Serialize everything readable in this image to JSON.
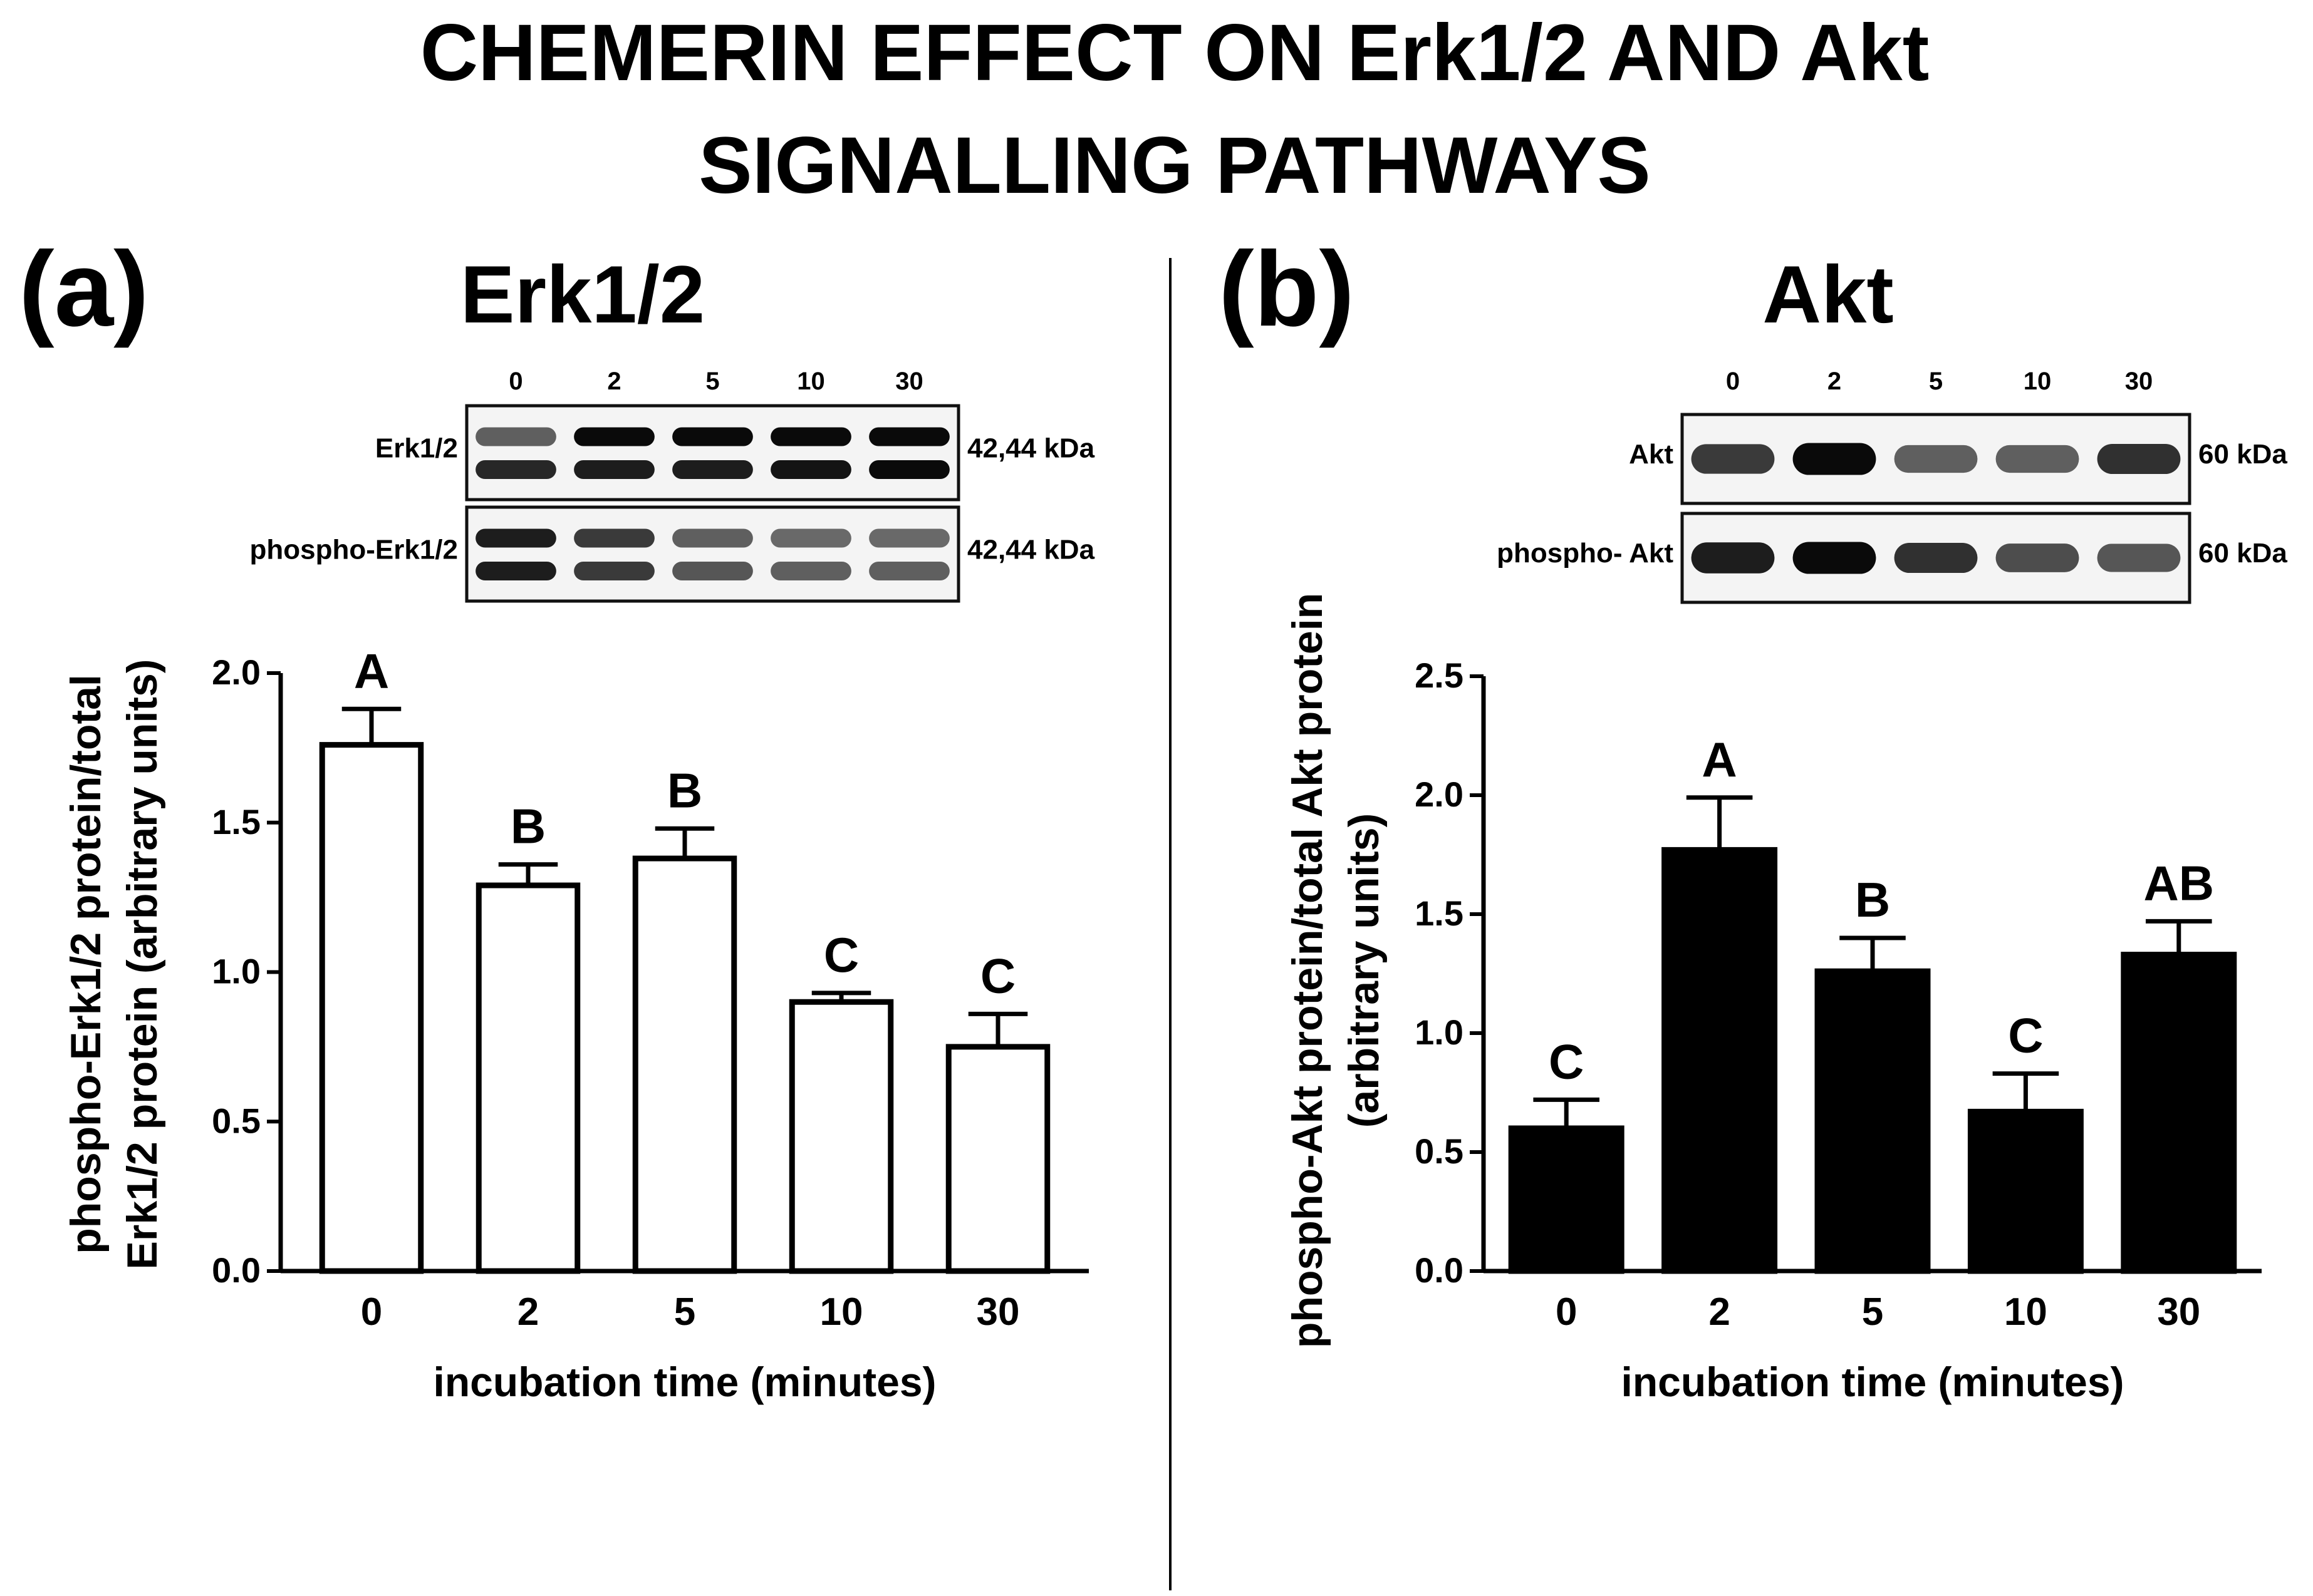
{
  "figure": {
    "title_line1": "CHEMERIN EFFECT ON Erk1/2 AND Akt",
    "title_line2": "SIGNALLING PATHWAYS"
  },
  "panel_a": {
    "letter": "(a)",
    "heading": "Erk1/2",
    "blot": {
      "lanes": [
        "0",
        "2",
        "5",
        "10",
        "30"
      ],
      "rows": [
        {
          "label": "Erk1/2",
          "kda": "42,44 kDa",
          "bands": [
            [
              0.55,
              0.85
            ],
            [
              1.0,
              0.9
            ],
            [
              1.0,
              0.9
            ],
            [
              1.0,
              0.95
            ],
            [
              1.0,
              1.0
            ]
          ],
          "double": true
        },
        {
          "label": "phospho-Erk1/2",
          "kda": "42,44 kDa",
          "bands": [
            [
              0.9,
              0.9
            ],
            [
              0.75,
              0.75
            ],
            [
              0.55,
              0.6
            ],
            [
              0.5,
              0.55
            ],
            [
              0.5,
              0.55
            ]
          ],
          "double": true
        }
      ]
    }
  },
  "panel_b": {
    "letter": "(b)",
    "heading": "Akt",
    "blot": {
      "lanes": [
        "0",
        "2",
        "5",
        "10",
        "30"
      ],
      "rows": [
        {
          "label": "Akt",
          "kda": "60 kDa",
          "bands": [
            [
              0.75
            ],
            [
              1.0
            ],
            [
              0.55
            ],
            [
              0.55
            ],
            [
              0.8
            ]
          ],
          "double": false
        },
        {
          "label": "phospho- Akt",
          "kda": "60 kDa",
          "bands": [
            [
              0.9
            ],
            [
              1.0
            ],
            [
              0.8
            ],
            [
              0.65
            ],
            [
              0.6
            ]
          ],
          "double": false
        }
      ]
    }
  },
  "chart_data": [
    {
      "type": "bar",
      "categories": [
        "0",
        "2",
        "5",
        "10",
        "30"
      ],
      "values": [
        1.76,
        1.29,
        1.38,
        0.9,
        0.75
      ],
      "errors": [
        0.12,
        0.07,
        0.1,
        0.03,
        0.11
      ],
      "letters": [
        "A",
        "B",
        "B",
        "C",
        "C"
      ],
      "ylim": [
        0,
        2.0
      ],
      "yticks": [
        "0.0",
        "0.5",
        "1.0",
        "1.5",
        "2.0"
      ],
      "ytick_values": [
        0,
        0.5,
        1.0,
        1.5,
        2.0
      ],
      "ylabel_line1": "phospho-Erk1/2 protein/total",
      "ylabel_line2": "Erk1/2 protein (arbitrary units)",
      "xlabel": "incubation time (minutes)",
      "bar_fill": "#ffffff",
      "bar_stroke": "#000000"
    },
    {
      "type": "bar",
      "categories": [
        "0",
        "2",
        "5",
        "10",
        "30"
      ],
      "values": [
        0.6,
        1.77,
        1.26,
        0.67,
        1.33
      ],
      "errors": [
        0.12,
        0.22,
        0.14,
        0.16,
        0.14
      ],
      "letters": [
        "C",
        "A",
        "B",
        "C",
        "AB"
      ],
      "ylim": [
        0,
        2.5
      ],
      "yticks": [
        "0.0",
        "0.5",
        "1.0",
        "1.5",
        "2.0",
        "2.5"
      ],
      "ytick_values": [
        0,
        0.5,
        1.0,
        1.5,
        2.0,
        2.5
      ],
      "ylabel_line1": "phospho-Akt protein/total Akt protein",
      "ylabel_line2": "(arbitrary units)",
      "xlabel": "incubation time (minutes)",
      "bar_fill": "#000000",
      "bar_stroke": "#000000"
    }
  ]
}
